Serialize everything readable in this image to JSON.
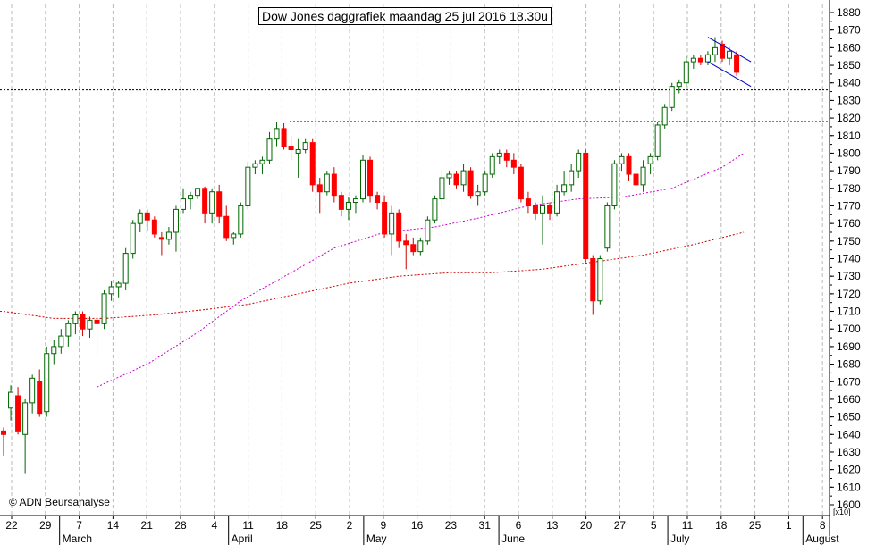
{
  "title": "Dow Jones daggrafiek maandag 25 jul 2016 18.30u",
  "copyright": "© ADN Beursanalyse",
  "x10_label": "[x10]",
  "chart_data": {
    "type": "candlestick",
    "title": "Dow Jones daggrafiek maandag 25 jul 2016 18.30u",
    "y_axis": {
      "min": 1600,
      "max": 1880,
      "step": 10,
      "position": "right",
      "multiplier_label": "[x10]",
      "ticks": [
        1880,
        1870,
        1860,
        1850,
        1840,
        1830,
        1820,
        1810,
        1800,
        1790,
        1780,
        1770,
        1760,
        1750,
        1740,
        1730,
        1720,
        1710,
        1700,
        1690,
        1680,
        1670,
        1660,
        1650,
        1640,
        1630,
        1620,
        1610,
        1600
      ]
    },
    "x_axis": {
      "day_labels": [
        "22",
        "29",
        "7",
        "14",
        "21",
        "28",
        "4",
        "11",
        "18",
        "25",
        "2",
        "9",
        "16",
        "23",
        "31",
        "6",
        "13",
        "20",
        "27",
        "5",
        "11",
        "18",
        "25",
        "1",
        "8"
      ],
      "months": [
        {
          "label": "March",
          "after_tick": 1
        },
        {
          "label": "April",
          "after_tick": 6
        },
        {
          "label": "May",
          "after_tick": 10
        },
        {
          "label": "June",
          "after_tick": 14
        },
        {
          "label": "July",
          "after_tick": 19
        },
        {
          "label": "August",
          "after_tick": 23
        }
      ]
    },
    "grid": "vertical dashed",
    "horizontal_levels": [
      1836,
      1818
    ],
    "candles": [
      {
        "o": 1642,
        "h": 1644,
        "l": 1628,
        "c": 1640
      },
      {
        "o": 1655,
        "h": 1668,
        "l": 1648,
        "c": 1664
      },
      {
        "o": 1662,
        "h": 1667,
        "l": 1640,
        "c": 1642
      },
      {
        "o": 1640,
        "h": 1660,
        "l": 1618,
        "c": 1658
      },
      {
        "o": 1658,
        "h": 1674,
        "l": 1652,
        "c": 1672
      },
      {
        "o": 1670,
        "h": 1677,
        "l": 1650,
        "c": 1652
      },
      {
        "o": 1653,
        "h": 1690,
        "l": 1650,
        "c": 1686
      },
      {
        "o": 1686,
        "h": 1694,
        "l": 1680,
        "c": 1690
      },
      {
        "o": 1690,
        "h": 1700,
        "l": 1686,
        "c": 1696
      },
      {
        "o": 1696,
        "h": 1705,
        "l": 1690,
        "c": 1703
      },
      {
        "o": 1703,
        "h": 1710,
        "l": 1697,
        "c": 1708
      },
      {
        "o": 1708,
        "h": 1710,
        "l": 1696,
        "c": 1700
      },
      {
        "o": 1700,
        "h": 1707,
        "l": 1695,
        "c": 1705
      },
      {
        "o": 1705,
        "h": 1707,
        "l": 1684,
        "c": 1703
      },
      {
        "o": 1703,
        "h": 1722,
        "l": 1700,
        "c": 1720
      },
      {
        "o": 1720,
        "h": 1727,
        "l": 1716,
        "c": 1724
      },
      {
        "o": 1724,
        "h": 1727,
        "l": 1718,
        "c": 1726
      },
      {
        "o": 1726,
        "h": 1746,
        "l": 1722,
        "c": 1743
      },
      {
        "o": 1743,
        "h": 1762,
        "l": 1740,
        "c": 1760
      },
      {
        "o": 1760,
        "h": 1768,
        "l": 1755,
        "c": 1766
      },
      {
        "o": 1766,
        "h": 1768,
        "l": 1756,
        "c": 1762
      },
      {
        "o": 1762,
        "h": 1764,
        "l": 1752,
        "c": 1754
      },
      {
        "o": 1752,
        "h": 1755,
        "l": 1742,
        "c": 1751
      },
      {
        "o": 1751,
        "h": 1758,
        "l": 1748,
        "c": 1755
      },
      {
        "o": 1755,
        "h": 1770,
        "l": 1744,
        "c": 1768
      },
      {
        "o": 1768,
        "h": 1780,
        "l": 1766,
        "c": 1774
      },
      {
        "o": 1774,
        "h": 1778,
        "l": 1768,
        "c": 1776
      },
      {
        "o": 1776,
        "h": 1780,
        "l": 1774,
        "c": 1780
      },
      {
        "o": 1780,
        "h": 1781,
        "l": 1760,
        "c": 1766
      },
      {
        "o": 1766,
        "h": 1780,
        "l": 1760,
        "c": 1778
      },
      {
        "o": 1778,
        "h": 1782,
        "l": 1760,
        "c": 1764
      },
      {
        "o": 1764,
        "h": 1770,
        "l": 1750,
        "c": 1752
      },
      {
        "o": 1752,
        "h": 1755,
        "l": 1748,
        "c": 1754
      },
      {
        "o": 1754,
        "h": 1772,
        "l": 1752,
        "c": 1770
      },
      {
        "o": 1770,
        "h": 1795,
        "l": 1768,
        "c": 1792
      },
      {
        "o": 1792,
        "h": 1796,
        "l": 1788,
        "c": 1794
      },
      {
        "o": 1794,
        "h": 1798,
        "l": 1788,
        "c": 1796
      },
      {
        "o": 1796,
        "h": 1812,
        "l": 1794,
        "c": 1808
      },
      {
        "o": 1808,
        "h": 1818,
        "l": 1804,
        "c": 1814
      },
      {
        "o": 1814,
        "h": 1817,
        "l": 1802,
        "c": 1804
      },
      {
        "o": 1804,
        "h": 1810,
        "l": 1796,
        "c": 1802
      },
      {
        "o": 1800,
        "h": 1808,
        "l": 1786,
        "c": 1802
      },
      {
        "o": 1802,
        "h": 1808,
        "l": 1800,
        "c": 1806
      },
      {
        "o": 1806,
        "h": 1808,
        "l": 1778,
        "c": 1782
      },
      {
        "o": 1782,
        "h": 1786,
        "l": 1766,
        "c": 1778
      },
      {
        "o": 1778,
        "h": 1790,
        "l": 1776,
        "c": 1788
      },
      {
        "o": 1788,
        "h": 1792,
        "l": 1772,
        "c": 1776
      },
      {
        "o": 1776,
        "h": 1778,
        "l": 1764,
        "c": 1768
      },
      {
        "o": 1768,
        "h": 1775,
        "l": 1762,
        "c": 1772
      },
      {
        "o": 1772,
        "h": 1776,
        "l": 1766,
        "c": 1774
      },
      {
        "o": 1774,
        "h": 1799,
        "l": 1772,
        "c": 1796
      },
      {
        "o": 1796,
        "h": 1798,
        "l": 1772,
        "c": 1776
      },
      {
        "o": 1776,
        "h": 1778,
        "l": 1768,
        "c": 1772
      },
      {
        "o": 1772,
        "h": 1776,
        "l": 1752,
        "c": 1754
      },
      {
        "o": 1754,
        "h": 1770,
        "l": 1742,
        "c": 1766
      },
      {
        "o": 1766,
        "h": 1768,
        "l": 1746,
        "c": 1750
      },
      {
        "o": 1750,
        "h": 1754,
        "l": 1734,
        "c": 1748
      },
      {
        "o": 1748,
        "h": 1752,
        "l": 1742,
        "c": 1744
      },
      {
        "o": 1744,
        "h": 1752,
        "l": 1742,
        "c": 1750
      },
      {
        "o": 1750,
        "h": 1764,
        "l": 1748,
        "c": 1762
      },
      {
        "o": 1762,
        "h": 1776,
        "l": 1760,
        "c": 1774
      },
      {
        "o": 1774,
        "h": 1790,
        "l": 1770,
        "c": 1786
      },
      {
        "o": 1786,
        "h": 1790,
        "l": 1782,
        "c": 1788
      },
      {
        "o": 1788,
        "h": 1790,
        "l": 1780,
        "c": 1782
      },
      {
        "o": 1782,
        "h": 1794,
        "l": 1778,
        "c": 1790
      },
      {
        "o": 1790,
        "h": 1792,
        "l": 1774,
        "c": 1776
      },
      {
        "o": 1776,
        "h": 1782,
        "l": 1770,
        "c": 1778
      },
      {
        "o": 1778,
        "h": 1790,
        "l": 1776,
        "c": 1788
      },
      {
        "o": 1788,
        "h": 1800,
        "l": 1786,
        "c": 1798
      },
      {
        "o": 1798,
        "h": 1802,
        "l": 1794,
        "c": 1800
      },
      {
        "o": 1800,
        "h": 1802,
        "l": 1792,
        "c": 1796
      },
      {
        "o": 1796,
        "h": 1800,
        "l": 1788,
        "c": 1792
      },
      {
        "o": 1792,
        "h": 1794,
        "l": 1772,
        "c": 1774
      },
      {
        "o": 1774,
        "h": 1778,
        "l": 1766,
        "c": 1770
      },
      {
        "o": 1770,
        "h": 1772,
        "l": 1762,
        "c": 1766
      },
      {
        "o": 1766,
        "h": 1776,
        "l": 1748,
        "c": 1770
      },
      {
        "o": 1770,
        "h": 1772,
        "l": 1762,
        "c": 1766
      },
      {
        "o": 1766,
        "h": 1782,
        "l": 1764,
        "c": 1778
      },
      {
        "o": 1778,
        "h": 1790,
        "l": 1776,
        "c": 1782
      },
      {
        "o": 1782,
        "h": 1794,
        "l": 1778,
        "c": 1790
      },
      {
        "o": 1790,
        "h": 1802,
        "l": 1786,
        "c": 1800
      },
      {
        "o": 1800,
        "h": 1802,
        "l": 1738,
        "c": 1740
      },
      {
        "o": 1740,
        "h": 1742,
        "l": 1708,
        "c": 1716
      },
      {
        "o": 1716,
        "h": 1742,
        "l": 1714,
        "c": 1740
      },
      {
        "o": 1746,
        "h": 1772,
        "l": 1744,
        "c": 1770
      },
      {
        "o": 1770,
        "h": 1796,
        "l": 1768,
        "c": 1794
      },
      {
        "o": 1794,
        "h": 1800,
        "l": 1790,
        "c": 1798
      },
      {
        "o": 1798,
        "h": 1800,
        "l": 1784,
        "c": 1788
      },
      {
        "o": 1788,
        "h": 1794,
        "l": 1774,
        "c": 1782
      },
      {
        "o": 1782,
        "h": 1796,
        "l": 1778,
        "c": 1792
      },
      {
        "o": 1794,
        "h": 1800,
        "l": 1788,
        "c": 1798
      },
      {
        "o": 1798,
        "h": 1818,
        "l": 1796,
        "c": 1816
      },
      {
        "o": 1816,
        "h": 1828,
        "l": 1814,
        "c": 1826
      },
      {
        "o": 1826,
        "h": 1840,
        "l": 1824,
        "c": 1838
      },
      {
        "o": 1838,
        "h": 1842,
        "l": 1834,
        "c": 1840
      },
      {
        "o": 1840,
        "h": 1855,
        "l": 1838,
        "c": 1852
      },
      {
        "o": 1852,
        "h": 1856,
        "l": 1848,
        "c": 1854
      },
      {
        "o": 1854,
        "h": 1856,
        "l": 1850,
        "c": 1852
      },
      {
        "o": 1852,
        "h": 1858,
        "l": 1850,
        "c": 1856
      },
      {
        "o": 1856,
        "h": 1866,
        "l": 1852,
        "c": 1860
      },
      {
        "o": 1862,
        "h": 1864,
        "l": 1852,
        "c": 1854
      },
      {
        "o": 1854,
        "h": 1860,
        "l": 1850,
        "c": 1858
      },
      {
        "o": 1856,
        "h": 1858,
        "l": 1844,
        "c": 1846
      }
    ],
    "moving_averages": [
      {
        "color": "#cc00cc",
        "values_at": [
          [
            13,
            1667
          ],
          [
            20,
            1680
          ],
          [
            27,
            1698
          ],
          [
            33,
            1716
          ],
          [
            40,
            1732
          ],
          [
            46,
            1746
          ],
          [
            53,
            1755
          ],
          [
            60,
            1758
          ],
          [
            66,
            1763
          ],
          [
            73,
            1770
          ],
          [
            80,
            1774
          ],
          [
            86,
            1775
          ],
          [
            93,
            1780
          ],
          [
            100,
            1792
          ],
          [
            103,
            1800
          ]
        ]
      },
      {
        "color": "#cc0000",
        "values_at": [
          [
            0,
            1710
          ],
          [
            7,
            1706
          ],
          [
            14,
            1706
          ],
          [
            21,
            1708
          ],
          [
            28,
            1711
          ],
          [
            34,
            1714
          ],
          [
            41,
            1720
          ],
          [
            48,
            1726
          ],
          [
            55,
            1730
          ],
          [
            62,
            1732
          ],
          [
            68,
            1732
          ],
          [
            75,
            1734
          ],
          [
            82,
            1738
          ],
          [
            89,
            1742
          ],
          [
            96,
            1748
          ],
          [
            103,
            1755
          ]
        ]
      }
    ],
    "trend_channel": [
      {
        "from": [
          98,
          1866
        ],
        "to": [
          103,
          1852
        ]
      },
      {
        "from": [
          98,
          1852
        ],
        "to": [
          103,
          1838
        ]
      }
    ]
  }
}
